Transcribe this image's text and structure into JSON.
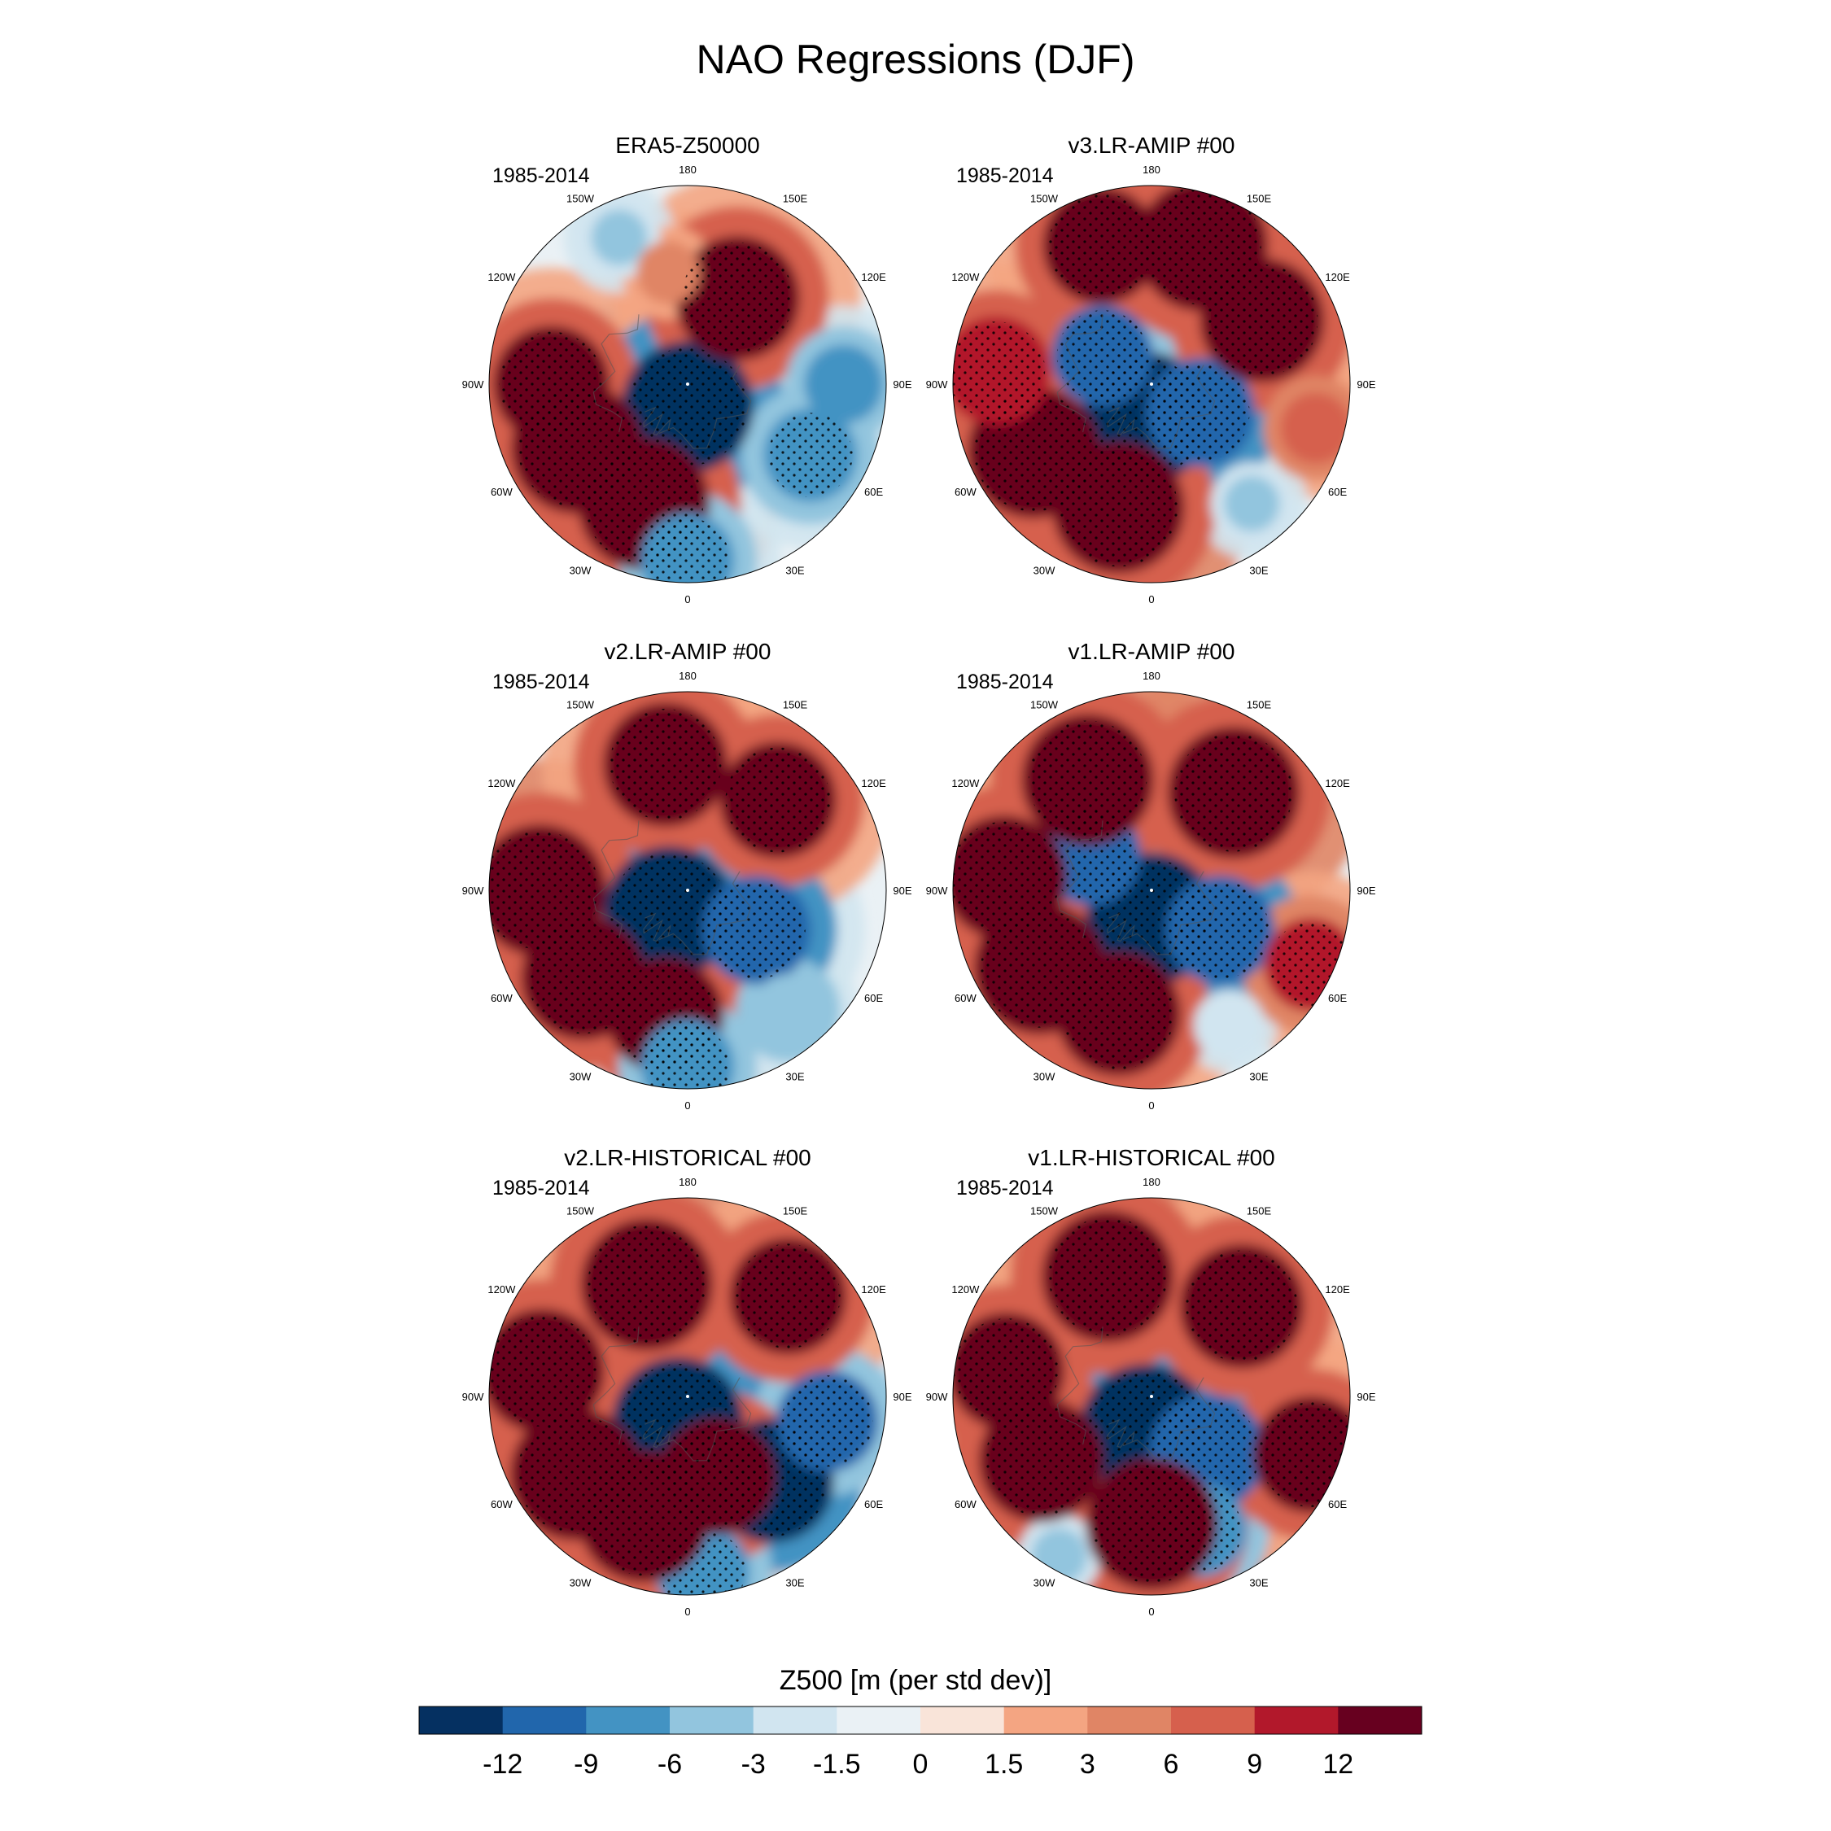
{
  "title": "NAO Regressions (DJF)",
  "colorbar": {
    "label": "Z500 [m (per std dev)]",
    "ticks": [
      "-12",
      "-9",
      "-6",
      "-3",
      "-1.5",
      "0",
      "1.5",
      "3",
      "6",
      "9",
      "12"
    ],
    "colors": [
      "#053061",
      "#2166ac",
      "#4393c3",
      "#92c5de",
      "#d1e5f0",
      "#eaf1f5",
      "#f9e4d9",
      "#f4a582",
      "#e08565",
      "#d6604d",
      "#b2182b",
      "#67001f"
    ]
  },
  "lon_labels": [
    "180",
    "150E",
    "120E",
    "90E",
    "60E",
    "30E",
    "0",
    "30W",
    "60W",
    "90W",
    "120W",
    "150W"
  ],
  "chart_data": [
    {
      "type": "heatmap",
      "title": "ERA5-Z50000",
      "period": "1985-2014",
      "projection": "polar stereographic, North Pole",
      "features": [
        {
          "kind": "low",
          "lon": 0,
          "lat": 82,
          "value": -14
        },
        {
          "kind": "high",
          "lon": -60,
          "lat": 45,
          "value": 14
        },
        {
          "kind": "high",
          "lon": -20,
          "lat": 45,
          "value": 14
        },
        {
          "kind": "high",
          "lon": -90,
          "lat": 42,
          "value": 12
        },
        {
          "kind": "high",
          "lon": 150,
          "lat": 55,
          "value": 13
        },
        {
          "kind": "high",
          "lon": -170,
          "lat": 50,
          "value": 5
        },
        {
          "kind": "low",
          "lon": 60,
          "lat": 40,
          "value": -9
        },
        {
          "kind": "low",
          "lon": 0,
          "lat": 28,
          "value": -9
        },
        {
          "kind": "low",
          "lon": 90,
          "lat": 35,
          "value": -7
        },
        {
          "kind": "low",
          "lon": -155,
          "lat": 33,
          "value": -4
        }
      ]
    },
    {
      "type": "heatmap",
      "title": "v3.LR-AMIP  #00",
      "period": "1985-2014",
      "projection": "polar stereographic, North Pole",
      "features": [
        {
          "kind": "low",
          "lon": -10,
          "lat": 78,
          "value": -14
        },
        {
          "kind": "low",
          "lon": 60,
          "lat": 70,
          "value": -11
        },
        {
          "kind": "low",
          "lon": -120,
          "lat": 70,
          "value": -10
        },
        {
          "kind": "high",
          "lon": -60,
          "lat": 42,
          "value": 14
        },
        {
          "kind": "high",
          "lon": -15,
          "lat": 45,
          "value": 14
        },
        {
          "kind": "high",
          "lon": 160,
          "lat": 38,
          "value": 14
        },
        {
          "kind": "high",
          "lon": -160,
          "lat": 38,
          "value": 12
        },
        {
          "kind": "high",
          "lon": 120,
          "lat": 45,
          "value": 13
        },
        {
          "kind": "high",
          "lon": -95,
          "lat": 35,
          "value": 11
        },
        {
          "kind": "high",
          "lon": 75,
          "lat": 30,
          "value": 6
        },
        {
          "kind": "low",
          "lon": 40,
          "lat": 35,
          "value": -4
        }
      ]
    },
    {
      "type": "heatmap",
      "title": "v2.LR-AMIP  #00",
      "period": "1985-2014",
      "projection": "polar stereographic, North Pole",
      "features": [
        {
          "kind": "low",
          "lon": -40,
          "lat": 80,
          "value": -14
        },
        {
          "kind": "low",
          "lon": 60,
          "lat": 62,
          "value": -11
        },
        {
          "kind": "high",
          "lon": -50,
          "lat": 42,
          "value": 13
        },
        {
          "kind": "high",
          "lon": -90,
          "lat": 38,
          "value": 14
        },
        {
          "kind": "high",
          "lon": -10,
          "lat": 45,
          "value": 12
        },
        {
          "kind": "high",
          "lon": -170,
          "lat": 45,
          "value": 13
        },
        {
          "kind": "high",
          "lon": 135,
          "lat": 45,
          "value": 12
        },
        {
          "kind": "low",
          "lon": 0,
          "lat": 28,
          "value": -9
        },
        {
          "kind": "low",
          "lon": 40,
          "lat": 35,
          "value": -6
        }
      ]
    },
    {
      "type": "heatmap",
      "title": "v1.LR-AMIP  #00",
      "period": "1985-2014",
      "projection": "polar stereographic, North Pole",
      "features": [
        {
          "kind": "low",
          "lon": 0,
          "lat": 80,
          "value": -14
        },
        {
          "kind": "low",
          "lon": 60,
          "lat": 62,
          "value": -11
        },
        {
          "kind": "low",
          "lon": -120,
          "lat": 65,
          "value": -10
        },
        {
          "kind": "high",
          "lon": -55,
          "lat": 42,
          "value": 14
        },
        {
          "kind": "high",
          "lon": -15,
          "lat": 45,
          "value": 13
        },
        {
          "kind": "high",
          "lon": -150,
          "lat": 45,
          "value": 14
        },
        {
          "kind": "high",
          "lon": 140,
          "lat": 45,
          "value": 14
        },
        {
          "kind": "high",
          "lon": -95,
          "lat": 38,
          "value": 13
        },
        {
          "kind": "high",
          "lon": 65,
          "lat": 28,
          "value": 9
        },
        {
          "kind": "low",
          "lon": 30,
          "lat": 35,
          "value": -3
        }
      ]
    },
    {
      "type": "heatmap",
      "title": "v2.LR-HISTORICAL  #00",
      "period": "1985-2014",
      "projection": "polar stereographic, North Pole",
      "features": [
        {
          "kind": "low",
          "lon": -20,
          "lat": 80,
          "value": -14
        },
        {
          "kind": "low",
          "lon": 45,
          "lat": 48,
          "value": -13
        },
        {
          "kind": "low",
          "lon": 80,
          "lat": 40,
          "value": -10
        },
        {
          "kind": "low",
          "lon": 5,
          "lat": 28,
          "value": -9
        },
        {
          "kind": "high",
          "lon": -55,
          "lat": 42,
          "value": 14
        },
        {
          "kind": "high",
          "lon": -20,
          "lat": 45,
          "value": 14
        },
        {
          "kind": "high",
          "lon": -160,
          "lat": 48,
          "value": 14
        },
        {
          "kind": "high",
          "lon": -100,
          "lat": 38,
          "value": 13
        },
        {
          "kind": "high",
          "lon": 135,
          "lat": 40,
          "value": 12
        },
        {
          "kind": "high",
          "lon": 20,
          "lat": 60,
          "value": 12
        }
      ]
    },
    {
      "type": "heatmap",
      "title": "v1.LR-HISTORICAL  #00",
      "period": "1985-2014",
      "projection": "polar stereographic, North Pole",
      "features": [
        {
          "kind": "low",
          "lon": -10,
          "lat": 78,
          "value": -14
        },
        {
          "kind": "low",
          "lon": 45,
          "lat": 62,
          "value": -12
        },
        {
          "kind": "low",
          "lon": 20,
          "lat": 40,
          "value": -9
        },
        {
          "kind": "high",
          "lon": -60,
          "lat": 45,
          "value": 13
        },
        {
          "kind": "high",
          "lon": 0,
          "lat": 45,
          "value": 14
        },
        {
          "kind": "high",
          "lon": -160,
          "lat": 45,
          "value": 14
        },
        {
          "kind": "high",
          "lon": 135,
          "lat": 45,
          "value": 13
        },
        {
          "kind": "high",
          "lon": -100,
          "lat": 38,
          "value": 12
        },
        {
          "kind": "high",
          "lon": 70,
          "lat": 30,
          "value": 12
        },
        {
          "kind": "low",
          "lon": -30,
          "lat": 25,
          "value": -4
        }
      ]
    }
  ]
}
